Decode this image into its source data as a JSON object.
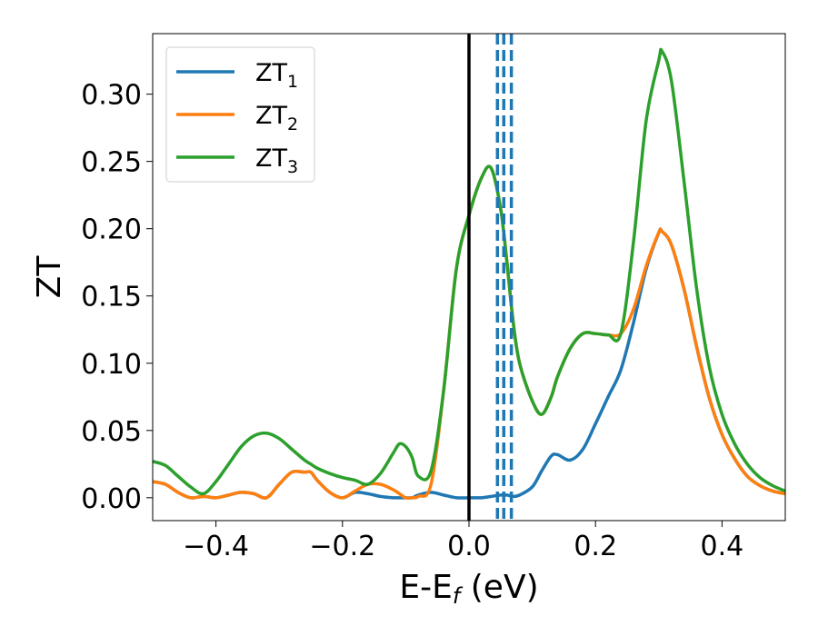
{
  "chart_data": {
    "type": "line",
    "xlabel": "E-E",
    "xlabel_sub": "f",
    "xlabel_unit": " (eV)",
    "ylabel": "ZT",
    "xlim": [
      -0.5,
      0.5
    ],
    "ylim": [
      -0.017,
      0.345
    ],
    "x_ticks": [
      -0.4,
      -0.2,
      0.0,
      0.2,
      0.4
    ],
    "x_tick_labels": [
      "−0.4",
      "−0.2",
      "0.0",
      "0.2",
      "0.4"
    ],
    "y_ticks": [
      0.0,
      0.05,
      0.1,
      0.15,
      0.2,
      0.25,
      0.3
    ],
    "y_tick_labels": [
      "0.00",
      "0.05",
      "0.10",
      "0.15",
      "0.20",
      "0.25",
      "0.30"
    ],
    "grid": false,
    "legend_position": "top-left",
    "fermi_line": {
      "x": 0.0,
      "color": "#000000"
    },
    "dashed_lines": {
      "x": [
        0.045,
        0.055,
        0.067
      ],
      "color": "#1f77b4"
    },
    "x": [
      -0.5,
      -0.48,
      -0.46,
      -0.44,
      -0.42,
      -0.4,
      -0.38,
      -0.36,
      -0.34,
      -0.32,
      -0.3,
      -0.28,
      -0.26,
      -0.25,
      -0.24,
      -0.22,
      -0.2,
      -0.18,
      -0.16,
      -0.14,
      -0.12,
      -0.11,
      -0.1,
      -0.09,
      -0.08,
      -0.06,
      -0.04,
      -0.02,
      0.0,
      0.02,
      0.035,
      0.05,
      0.06,
      0.07,
      0.08,
      0.1,
      0.115,
      0.13,
      0.14,
      0.16,
      0.18,
      0.2,
      0.22,
      0.24,
      0.26,
      0.28,
      0.3,
      0.305,
      0.32,
      0.34,
      0.36,
      0.38,
      0.4,
      0.42,
      0.44,
      0.46,
      0.48,
      0.5
    ],
    "series": [
      {
        "name": "ZT",
        "name_sub": "1",
        "color": "#1f77b4",
        "values": [
          0.012,
          0.01,
          0.004,
          0.0,
          0.001,
          0.0,
          0.002,
          0.004,
          0.003,
          0.0,
          0.01,
          0.019,
          0.019,
          0.019,
          0.013,
          0.004,
          0.0,
          0.004,
          0.003,
          0.001,
          0.0,
          0.0,
          0.0,
          0.0,
          0.002,
          0.004,
          0.002,
          0.0,
          0.0,
          0.0,
          0.001,
          0.002,
          0.002,
          0.001,
          0.002,
          0.008,
          0.02,
          0.031,
          0.032,
          0.028,
          0.036,
          0.055,
          0.075,
          0.095,
          0.13,
          0.17,
          0.197,
          0.198,
          0.188,
          0.155,
          0.112,
          0.074,
          0.047,
          0.029,
          0.016,
          0.009,
          0.005,
          0.003
        ]
      },
      {
        "name": "ZT",
        "name_sub": "2",
        "color": "#ff7f0e",
        "values": [
          0.012,
          0.01,
          0.004,
          0.0,
          0.001,
          0.0,
          0.002,
          0.004,
          0.003,
          0.0,
          0.01,
          0.019,
          0.019,
          0.019,
          0.013,
          0.004,
          0.0,
          0.005,
          0.01,
          0.01,
          0.006,
          0.003,
          0.0,
          0.0,
          0.001,
          0.01,
          0.08,
          0.17,
          0.21,
          0.238,
          0.245,
          0.215,
          0.175,
          0.13,
          0.1,
          0.072,
          0.062,
          0.075,
          0.09,
          0.111,
          0.122,
          0.122,
          0.121,
          0.122,
          0.14,
          0.172,
          0.197,
          0.198,
          0.188,
          0.155,
          0.112,
          0.074,
          0.047,
          0.029,
          0.016,
          0.009,
          0.005,
          0.003
        ]
      },
      {
        "name": "ZT",
        "name_sub": "3",
        "color": "#2ca02c",
        "values": [
          0.027,
          0.024,
          0.016,
          0.008,
          0.003,
          0.012,
          0.025,
          0.038,
          0.046,
          0.048,
          0.044,
          0.036,
          0.028,
          0.025,
          0.022,
          0.018,
          0.015,
          0.013,
          0.01,
          0.018,
          0.033,
          0.04,
          0.038,
          0.03,
          0.016,
          0.02,
          0.08,
          0.17,
          0.21,
          0.238,
          0.245,
          0.215,
          0.175,
          0.13,
          0.1,
          0.072,
          0.062,
          0.075,
          0.09,
          0.111,
          0.122,
          0.122,
          0.121,
          0.122,
          0.19,
          0.28,
          0.325,
          0.332,
          0.31,
          0.235,
          0.155,
          0.097,
          0.062,
          0.04,
          0.025,
          0.015,
          0.009,
          0.005
        ]
      }
    ]
  }
}
